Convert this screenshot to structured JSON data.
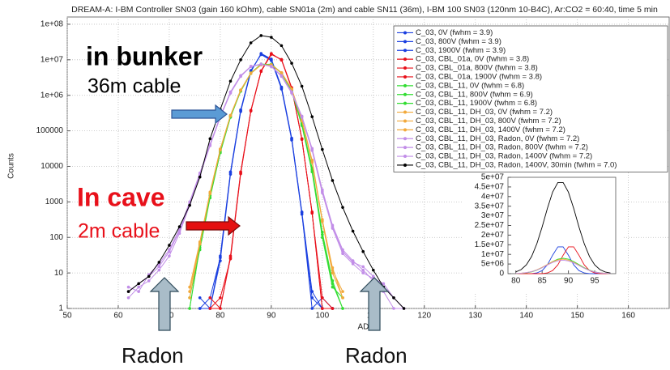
{
  "chart_data": [
    {
      "type": "line",
      "title": "DREAM-A: I-BM Controller SN03 (gain 160 kOhm), cable SN01a (2m) and cable SN11 (36m), I-BM 100 SN03 (120nm 10-B4C), Ar:CO2 = 60:40, time 5 min",
      "xlabel": "ADC",
      "ylabel": "Counts",
      "log_y": true,
      "grid": true,
      "legend": "upper right",
      "xlim": [
        50,
        168
      ],
      "ylim": [
        1,
        160000000
      ],
      "xticks": [
        50,
        60,
        70,
        80,
        90,
        100,
        110,
        120,
        130,
        140,
        150,
        160
      ],
      "yticks": [
        1,
        10,
        100,
        1000,
        10000,
        100000,
        {
          "value": 1000000,
          "label": "1e+06"
        },
        {
          "value": 10000000,
          "label": "1e+07"
        },
        {
          "value": 100000000,
          "label": "1e+08"
        }
      ],
      "annotations": [
        "in bunker",
        "36m cable",
        "In cave",
        "2m cable",
        "Radon",
        "Radon"
      ],
      "x": [
        62,
        64,
        66,
        68,
        70,
        72,
        74,
        76,
        78,
        80,
        82,
        84,
        86,
        88,
        90,
        92,
        94,
        96,
        98,
        100,
        102,
        104,
        106,
        108,
        110,
        112,
        114,
        116
      ],
      "series": [
        {
          "name": "C_03, 0V (fwhm = 3.9)",
          "color": "#1a3fe0",
          "values": [
            null,
            null,
            null,
            null,
            null,
            null,
            null,
            1,
            2,
            27,
            6600,
            370000,
            4800000,
            14500000,
            10000000,
            1600000,
            59000,
            500,
            1,
            2,
            1,
            null,
            null,
            null,
            null,
            null,
            null,
            null
          ]
        },
        {
          "name": "C_03, 800V (fwhm = 3.9)",
          "color": "#1a3fe0",
          "values": [
            null,
            null,
            null,
            null,
            null,
            null,
            null,
            1,
            1,
            30,
            7000,
            390000,
            5000000,
            14000000,
            9500000,
            1500000,
            55000,
            450,
            2,
            1,
            1,
            null,
            null,
            null,
            null,
            null,
            null,
            null
          ]
        },
        {
          "name": "C_03, 1900V (fwhm = 3.9)",
          "color": "#1a3fe0",
          "values": [
            null,
            null,
            null,
            null,
            null,
            null,
            null,
            2,
            1,
            22,
            6000,
            350000,
            4600000,
            15000000,
            10500000,
            1700000,
            62000,
            520,
            3,
            1,
            1,
            null,
            null,
            null,
            null,
            null,
            null,
            null
          ]
        },
        {
          "name": "C_03, CBL_01a, 0V (fwhm = 3.8)",
          "color": "#e8101a",
          "values": [
            null,
            null,
            null,
            null,
            null,
            null,
            null,
            null,
            1,
            1,
            27,
            6600,
            370000,
            4800000,
            14500000,
            10000000,
            1600000,
            59000,
            500,
            1,
            1,
            null,
            null,
            null,
            null,
            null,
            null,
            null
          ]
        },
        {
          "name": "C_03, CBL_01a, 800V (fwhm = 3.8)",
          "color": "#e8101a",
          "values": [
            null,
            null,
            null,
            null,
            null,
            null,
            null,
            null,
            1,
            2,
            25,
            6200,
            360000,
            4700000,
            14200000,
            10200000,
            1650000,
            60000,
            480,
            2,
            1,
            null,
            null,
            null,
            null,
            null,
            null,
            null
          ]
        },
        {
          "name": "C_03, CBL_01a, 1900V (fwhm = 3.8)",
          "color": "#e8101a",
          "values": [
            null,
            null,
            null,
            null,
            null,
            null,
            null,
            null,
            2,
            1,
            30,
            7000,
            380000,
            4900000,
            15000000,
            9800000,
            1550000,
            57000,
            520,
            1,
            1,
            null,
            null,
            null,
            null,
            null,
            null,
            null
          ]
        },
        {
          "name": "C_03, CBL_11, 0V (fwhm = 6.8)",
          "color": "#33dd33",
          "values": [
            null,
            null,
            null,
            null,
            null,
            null,
            1,
            52,
            1500,
            26000,
            250000,
            1350000,
            4200000,
            7400000,
            7400000,
            4200000,
            1350000,
            150000,
            8000,
            120,
            5,
            1,
            null,
            null,
            null,
            null,
            null,
            null
          ]
        },
        {
          "name": "C_03, CBL_11, 800V (fwhm = 6.9)",
          "color": "#33dd33",
          "values": [
            null,
            null,
            null,
            null,
            null,
            null,
            2,
            45,
            1300,
            24000,
            240000,
            1300000,
            4100000,
            7300000,
            7500000,
            4300000,
            1400000,
            160000,
            9000,
            140,
            6,
            1,
            null,
            null,
            null,
            null,
            null,
            null
          ]
        },
        {
          "name": "C_03, CBL_11, 1900V (fwhm = 6.8)",
          "color": "#33dd33",
          "values": [
            null,
            null,
            null,
            null,
            null,
            null,
            1,
            60,
            1700,
            28000,
            260000,
            1400000,
            4300000,
            7600000,
            7300000,
            4100000,
            1300000,
            140000,
            7000,
            100,
            4,
            2,
            null,
            null,
            null,
            null,
            null,
            null
          ]
        },
        {
          "name": "C_03, CBL_11, DH_03, 0V (fwhm = 7.2)",
          "color": "#f2a93b",
          "values": [
            null,
            null,
            null,
            null,
            null,
            null,
            3,
            70,
            1800,
            30000,
            270000,
            1400000,
            4200000,
            7200000,
            7200000,
            4300000,
            1500000,
            200000,
            14000,
            300,
            12,
            3,
            null,
            null,
            null,
            null,
            null,
            null
          ]
        },
        {
          "name": "C_03, CBL_11, DH_03, 800V (fwhm = 7.2)",
          "color": "#f2a93b",
          "values": [
            null,
            null,
            null,
            null,
            null,
            null,
            2,
            65,
            1700,
            29000,
            265000,
            1380000,
            4150000,
            7150000,
            7250000,
            4350000,
            1520000,
            210000,
            15000,
            320,
            14,
            2,
            null,
            null,
            null,
            null,
            null,
            null
          ]
        },
        {
          "name": "C_03, CBL_11, DH_03, 1400V (fwhm = 7.2)",
          "color": "#f2a93b",
          "values": [
            null,
            null,
            null,
            null,
            null,
            null,
            4,
            75,
            1900,
            31000,
            275000,
            1420000,
            4250000,
            7250000,
            7150000,
            4250000,
            1480000,
            190000,
            13000,
            280,
            10,
            2,
            null,
            null,
            null,
            null,
            null,
            null
          ]
        },
        {
          "name": "C_03, CBL_11, DH_03, Radon, 0V (fwhm = 7.2)",
          "color": "#c28ee8",
          "values": [
            3,
            5,
            8,
            15,
            40,
            150,
            900,
            6000,
            40000,
            250000,
            1200000,
            3500000,
            6500000,
            7500000,
            6500000,
            3500000,
            1200000,
            250000,
            30000,
            2000,
            200,
            40,
            20,
            15,
            8,
            4,
            2,
            1
          ]
        },
        {
          "name": "C_03, CBL_11, DH_03, Radon, 800V (fwhm = 7.2)",
          "color": "#c28ee8",
          "values": [
            2,
            4,
            6,
            12,
            30,
            130,
            800,
            5500,
            38000,
            240000,
            1150000,
            3400000,
            6400000,
            7400000,
            6600000,
            3600000,
            1250000,
            260000,
            32000,
            2200,
            220,
            45,
            22,
            12,
            6,
            3,
            1,
            1
          ]
        },
        {
          "name": "C_03, CBL_11, DH_03, Radon, 1400V (fwhm = 7.2)",
          "color": "#c28ee8",
          "values": [
            4,
            3,
            9,
            18,
            45,
            170,
            1000,
            6500,
            42000,
            260000,
            1250000,
            3600000,
            6600000,
            7600000,
            6400000,
            3400000,
            1150000,
            240000,
            28000,
            1800,
            180,
            35,
            18,
            10,
            7,
            5,
            2,
            1
          ]
        },
        {
          "name": "C_03, CBL_11, DH_03, Radon, 1400V, 30min (fwhm = 7.0)",
          "color": "#000000",
          "values": [
            3,
            5,
            8,
            20,
            60,
            200,
            800,
            5000,
            60000,
            400000,
            2500000,
            10000000,
            30000000,
            48000000,
            43000000,
            25000000,
            8000000,
            1800000,
            250000,
            30000,
            4000,
            700,
            150,
            40,
            12,
            4,
            2,
            1
          ]
        }
      ]
    },
    {
      "type": "line",
      "xlim": [
        78.5,
        99
      ],
      "ylim": [
        0,
        50000000
      ],
      "xticks": [
        80,
        85,
        90,
        95
      ],
      "yticks": [
        0,
        {
          "value": 5000000,
          "label": "5e+06"
        },
        {
          "value": 10000000,
          "label": "1e+07"
        },
        {
          "value": 15000000,
          "label": "1.5e+07"
        },
        {
          "value": 20000000,
          "label": "2e+07"
        },
        {
          "value": 25000000,
          "label": "2.5e+07"
        },
        {
          "value": 30000000,
          "label": "3e+07"
        },
        {
          "value": 35000000,
          "label": "3.5e+07"
        },
        {
          "value": 40000000,
          "label": "4e+07"
        },
        {
          "value": 45000000,
          "label": "4.5e+07"
        },
        {
          "value": 50000000,
          "label": "5e+07"
        }
      ],
      "x": [
        80,
        81,
        82,
        83,
        84,
        85,
        86,
        87,
        88,
        89,
        90,
        91,
        92,
        93,
        94,
        95,
        96,
        97,
        98
      ],
      "series": [
        {
          "color": "#1a3fe0",
          "values": [
            0,
            0,
            3000,
            60000,
            360000,
            1600000,
            4600000,
            9600000,
            13900000,
            13900000,
            9600000,
            4600000,
            1600000,
            360000,
            60000,
            3000,
            0,
            0,
            0
          ]
        },
        {
          "color": "#e8101a",
          "values": [
            0,
            0,
            0,
            0,
            3000,
            60000,
            360000,
            1600000,
            4600000,
            9600000,
            13900000,
            13900000,
            9600000,
            4600000,
            1600000,
            360000,
            60000,
            3000,
            0
          ]
        },
        {
          "color": "#33dd33",
          "values": [
            60000,
            170000,
            420000,
            930000,
            1800000,
            3100000,
            4700000,
            6300000,
            7500000,
            8000000,
            7500000,
            6300000,
            4700000,
            3100000,
            1800000,
            930000,
            420000,
            170000,
            60000
          ]
        },
        {
          "color": "#f2a93b",
          "values": [
            90000,
            230000,
            530000,
            1100000,
            2000000,
            3300000,
            4800000,
            6200000,
            7200000,
            7500000,
            7000000,
            5900000,
            4400000,
            2900000,
            1700000,
            900000,
            430000,
            180000,
            70000
          ]
        },
        {
          "color": "#c28ee8",
          "values": [
            100000,
            250000,
            550000,
            1100000,
            1900000,
            3100000,
            4500000,
            5800000,
            6700000,
            7000000,
            6600000,
            5600000,
            4200000,
            2800000,
            1600000,
            850000,
            400000,
            170000,
            70000
          ]
        },
        {
          "color": "#000000",
          "values": [
            870000,
            2100000,
            4600000,
            8900000,
            15600000,
            24300000,
            33900000,
            42300000,
            47300000,
            47300000,
            42300000,
            33900000,
            24300000,
            15600000,
            8900000,
            4600000,
            2100000,
            870000,
            320000
          ]
        }
      ]
    }
  ]
}
